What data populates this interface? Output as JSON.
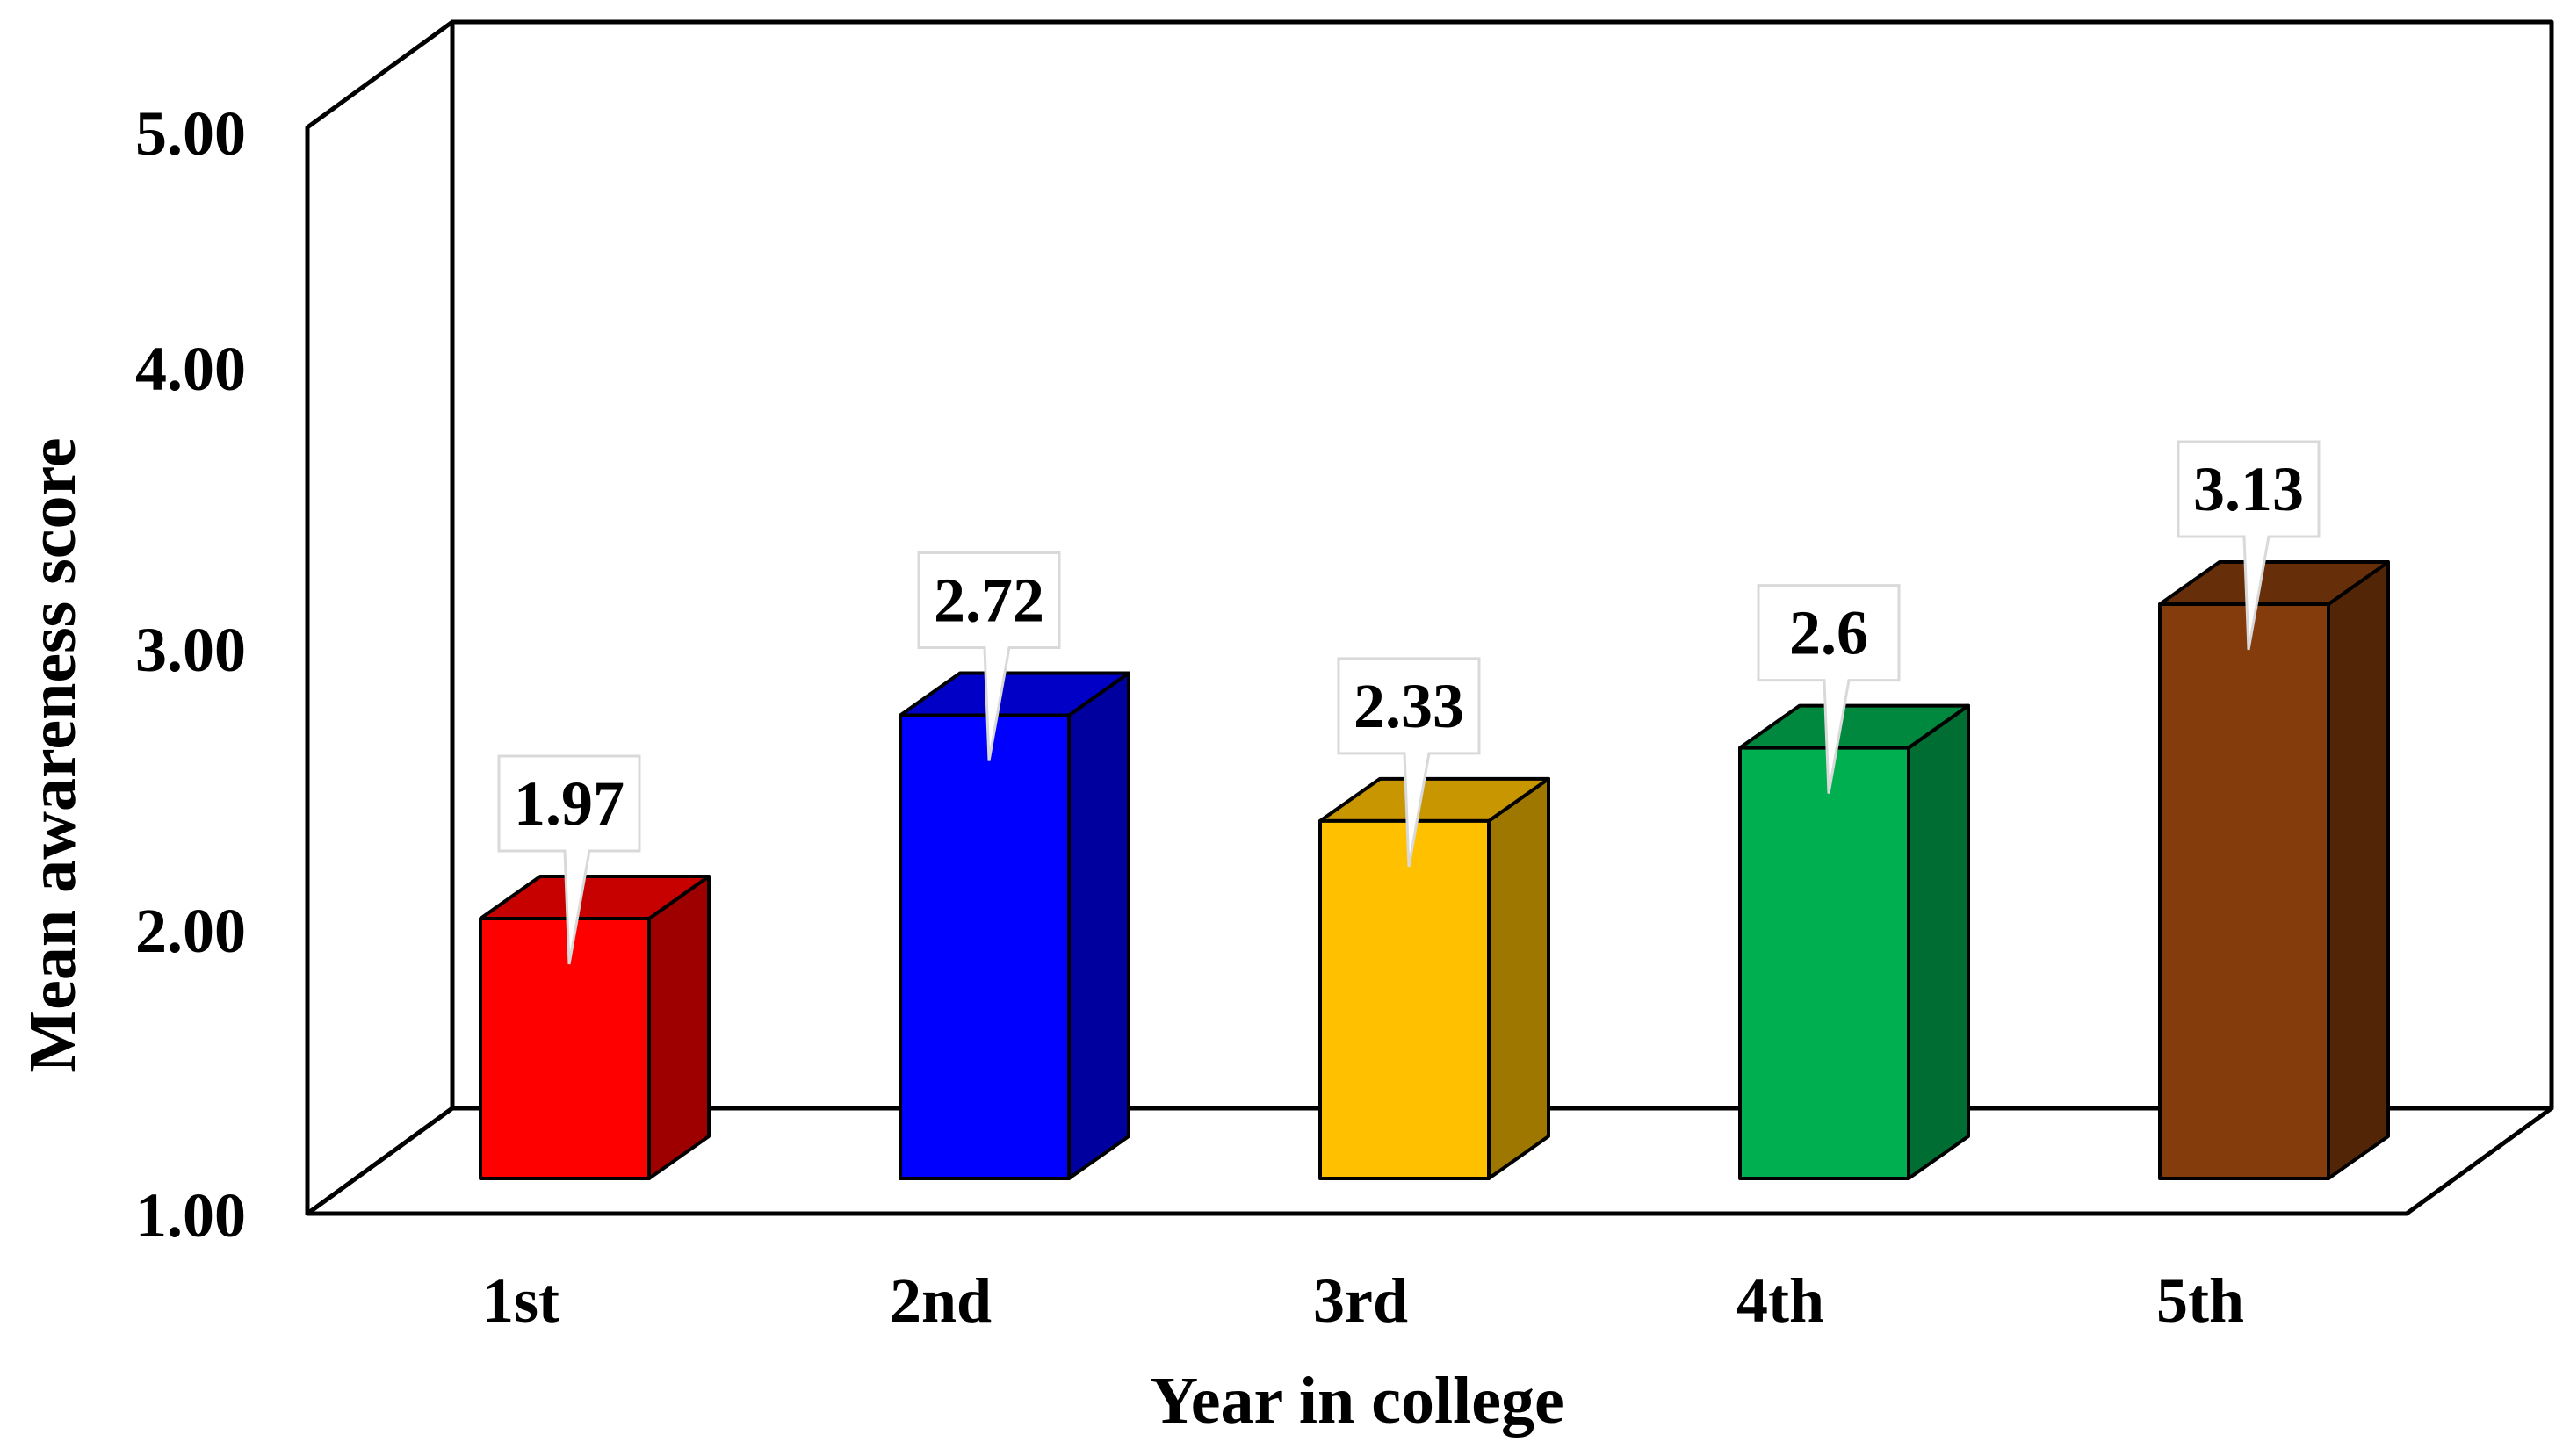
{
  "chart_data": {
    "type": "bar",
    "style": "3d",
    "title": "",
    "xlabel": "Year in college",
    "ylabel": "Mean awareness score",
    "ylim": [
      1,
      5
    ],
    "yticks": [
      "1.00",
      "2.00",
      "3.00",
      "4.00",
      "5.00"
    ],
    "categories": [
      "1st",
      "2nd",
      "3rd",
      "4th",
      "5th"
    ],
    "values": [
      1.97,
      2.72,
      2.33,
      2.6,
      3.13
    ],
    "data_labels": [
      "1.97",
      "2.72",
      "2.33",
      "2.6",
      "3.13"
    ],
    "colors": [
      "#FF0000",
      "#0000FF",
      "#FFC000",
      "#00B050",
      "#843C0C"
    ],
    "grid": false,
    "legend": "none"
  }
}
